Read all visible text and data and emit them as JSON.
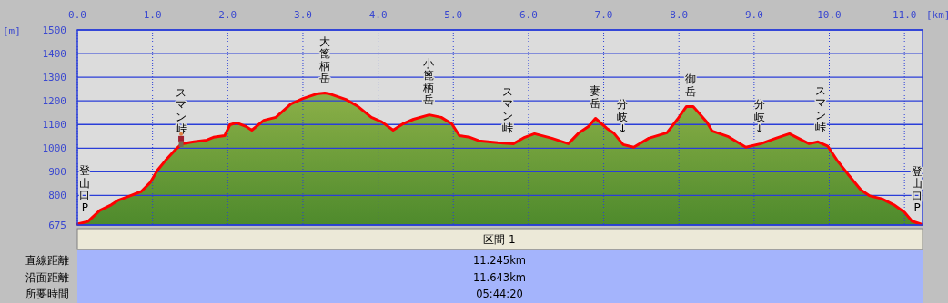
{
  "chart_data": {
    "type": "area",
    "xlabel": "[km]",
    "ylabel": "[m]",
    "x": [
      0,
      0.14,
      0.3,
      0.45,
      0.54,
      0.7,
      0.85,
      0.97,
      1.07,
      1.17,
      1.29,
      1.39,
      1.55,
      1.72,
      1.81,
      1.96,
      2.03,
      2.12,
      2.24,
      2.32,
      2.48,
      2.64,
      2.84,
      3.0,
      3.18,
      3.29,
      3.36,
      3.57,
      3.72,
      3.91,
      4.05,
      4.2,
      4.33,
      4.47,
      4.68,
      4.84,
      4.98,
      5.08,
      5.22,
      5.34,
      5.59,
      5.8,
      5.95,
      6.08,
      6.31,
      6.53,
      6.67,
      6.8,
      6.89,
      7.04,
      7.13,
      7.26,
      7.4,
      7.6,
      7.84,
      7.98,
      8.1,
      8.19,
      8.37,
      8.44,
      8.65,
      8.89,
      9.09,
      9.29,
      9.47,
      9.73,
      9.85,
      9.98,
      10.1,
      10.25,
      10.42,
      10.54,
      10.7,
      10.86,
      11.0,
      11.1,
      11.22
    ],
    "series": [
      {
        "color": "#ff0000",
        "values": [
          679,
          690,
          737,
          760,
          779,
          798,
          817,
          855,
          908,
          947,
          989,
          1019,
          1027,
          1034,
          1046,
          1053,
          1099,
          1107,
          1092,
          1076,
          1118,
          1130,
          1187,
          1210,
          1229,
          1233,
          1229,
          1206,
          1179,
          1130,
          1111,
          1076,
          1103,
          1122,
          1141,
          1130,
          1103,
          1053,
          1046,
          1031,
          1023,
          1019,
          1046,
          1061,
          1042,
          1019,
          1065,
          1092,
          1126,
          1084,
          1065,
          1015,
          1004,
          1042,
          1065,
          1122,
          1176,
          1176,
          1111,
          1073,
          1050,
          1004,
          1019,
          1042,
          1061,
          1019,
          1027,
          1008,
          950,
          889,
          824,
          798,
          786,
          760,
          729,
          691,
          679
        ]
      }
    ],
    "xlim": [
      0,
      11.24
    ],
    "ylim": [
      675,
      1500
    ],
    "xticks": [
      {
        "value": 0,
        "label": "0.0"
      },
      {
        "value": 1,
        "label": "1.0"
      },
      {
        "value": 2,
        "label": "2.0"
      },
      {
        "value": 3,
        "label": "3.0"
      },
      {
        "value": 4,
        "label": "4.0"
      },
      {
        "value": 5,
        "label": "5.0"
      },
      {
        "value": 6,
        "label": "6.0"
      },
      {
        "value": 7,
        "label": "7.0"
      },
      {
        "value": 8,
        "label": "8.0"
      },
      {
        "value": 9,
        "label": "9.0"
      },
      {
        "value": 10,
        "label": "10.0"
      },
      {
        "value": 11,
        "label": "11.0"
      }
    ],
    "yticks": [
      675,
      800,
      900,
      1000,
      1100,
      1200,
      1300,
      1400,
      1500
    ],
    "grid": true,
    "annotations": [
      {
        "text": "登山口P",
        "x": 0.1,
        "y": 686
      },
      {
        "text": "スマン峠",
        "x": 1.38,
        "y": 1017
      },
      {
        "text": "大篦柄岳",
        "x": 3.29,
        "y": 1233
      },
      {
        "text": "小篦柄岳",
        "x": 4.67,
        "y": 1141
      },
      {
        "text": "スマン峠",
        "x": 5.72,
        "y": 1021
      },
      {
        "text": "妻岳",
        "x": 6.88,
        "y": 1126
      },
      {
        "text": "分岐↓",
        "x": 7.25,
        "y": 1017
      },
      {
        "text": "御岳",
        "x": 8.15,
        "y": 1176
      },
      {
        "text": "分岐↓",
        "x": 9.07,
        "y": 1017
      },
      {
        "text": "スマン峠",
        "x": 9.88,
        "y": 1026
      },
      {
        "text": "登山口P",
        "x": 11.17,
        "y": 683
      },
      "区間 1",
      "直線距離",
      "11.245km",
      "沿面距離",
      "11.643km",
      "所要時間",
      "05:44:20"
    ]
  }
}
